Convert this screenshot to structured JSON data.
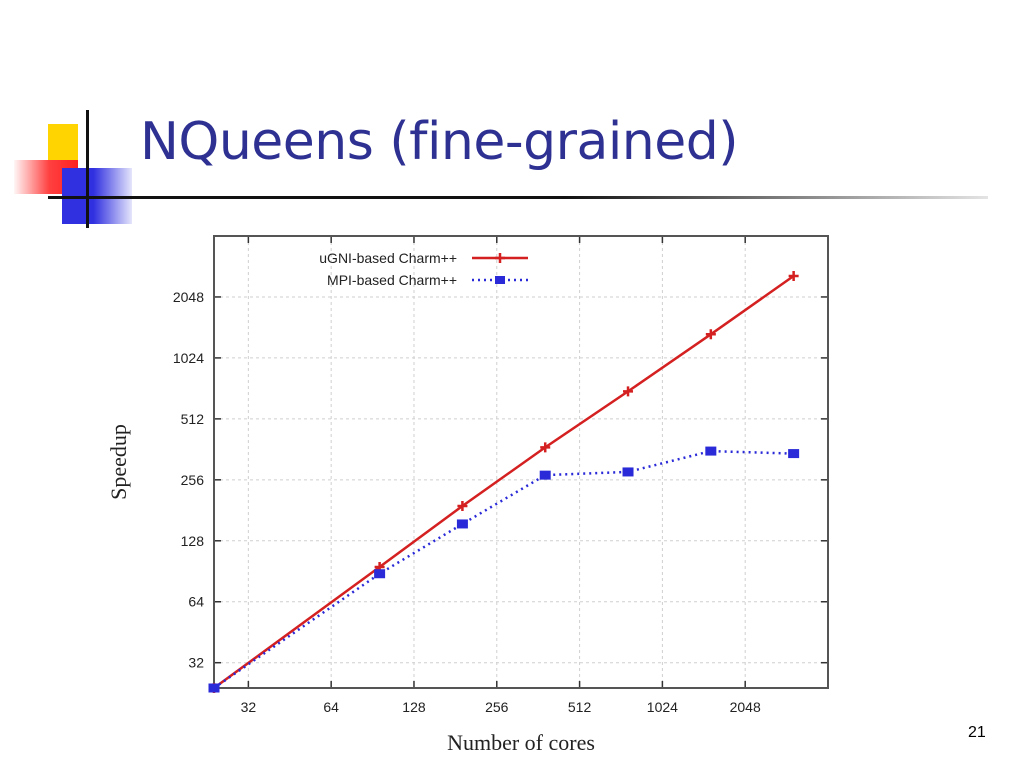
{
  "slide": {
    "title": "NQueens (fine-grained)",
    "number": "21"
  },
  "colors": {
    "title": "#2e3192",
    "ugni": "#d42020",
    "mpi": "#2a2ad8"
  },
  "chart_data": {
    "type": "line",
    "title": "",
    "xlabel": "Number of cores",
    "ylabel": "Speedup",
    "x_scale": "log2",
    "y_scale": "log2",
    "xlim": [
      24,
      4096
    ],
    "ylim": [
      24,
      4096
    ],
    "x_ticks": [
      {
        "value": 32,
        "label": "32"
      },
      {
        "value": 64,
        "label": "64"
      },
      {
        "value": 128,
        "label": "128"
      },
      {
        "value": 256,
        "label": "256"
      },
      {
        "value": 512,
        "label": "512"
      },
      {
        "value": 1024,
        "label": "1024"
      },
      {
        "value": 2048,
        "label": "2048"
      }
    ],
    "y_ticks": [
      {
        "value": 32,
        "label": "32"
      },
      {
        "value": 64,
        "label": "64"
      },
      {
        "value": 128,
        "label": "128"
      },
      {
        "value": 256,
        "label": "256"
      },
      {
        "value": 512,
        "label": "512"
      },
      {
        "value": 1024,
        "label": "1024"
      },
      {
        "value": 2048,
        "label": "2048"
      }
    ],
    "grid": true,
    "legend_position": "top-left",
    "series": [
      {
        "name": "uGNI-based Charm++",
        "style": "solid",
        "x": [
          24,
          96,
          192,
          384,
          768,
          1536,
          3072
        ],
        "y": [
          24,
          95,
          190,
          370,
          700,
          1340,
          2600
        ]
      },
      {
        "name": "MPI-based Charm++",
        "style": "dotted",
        "x": [
          24,
          96,
          192,
          384,
          768,
          1536,
          3072
        ],
        "y": [
          24,
          88,
          155,
          270,
          280,
          355,
          345
        ]
      }
    ]
  }
}
